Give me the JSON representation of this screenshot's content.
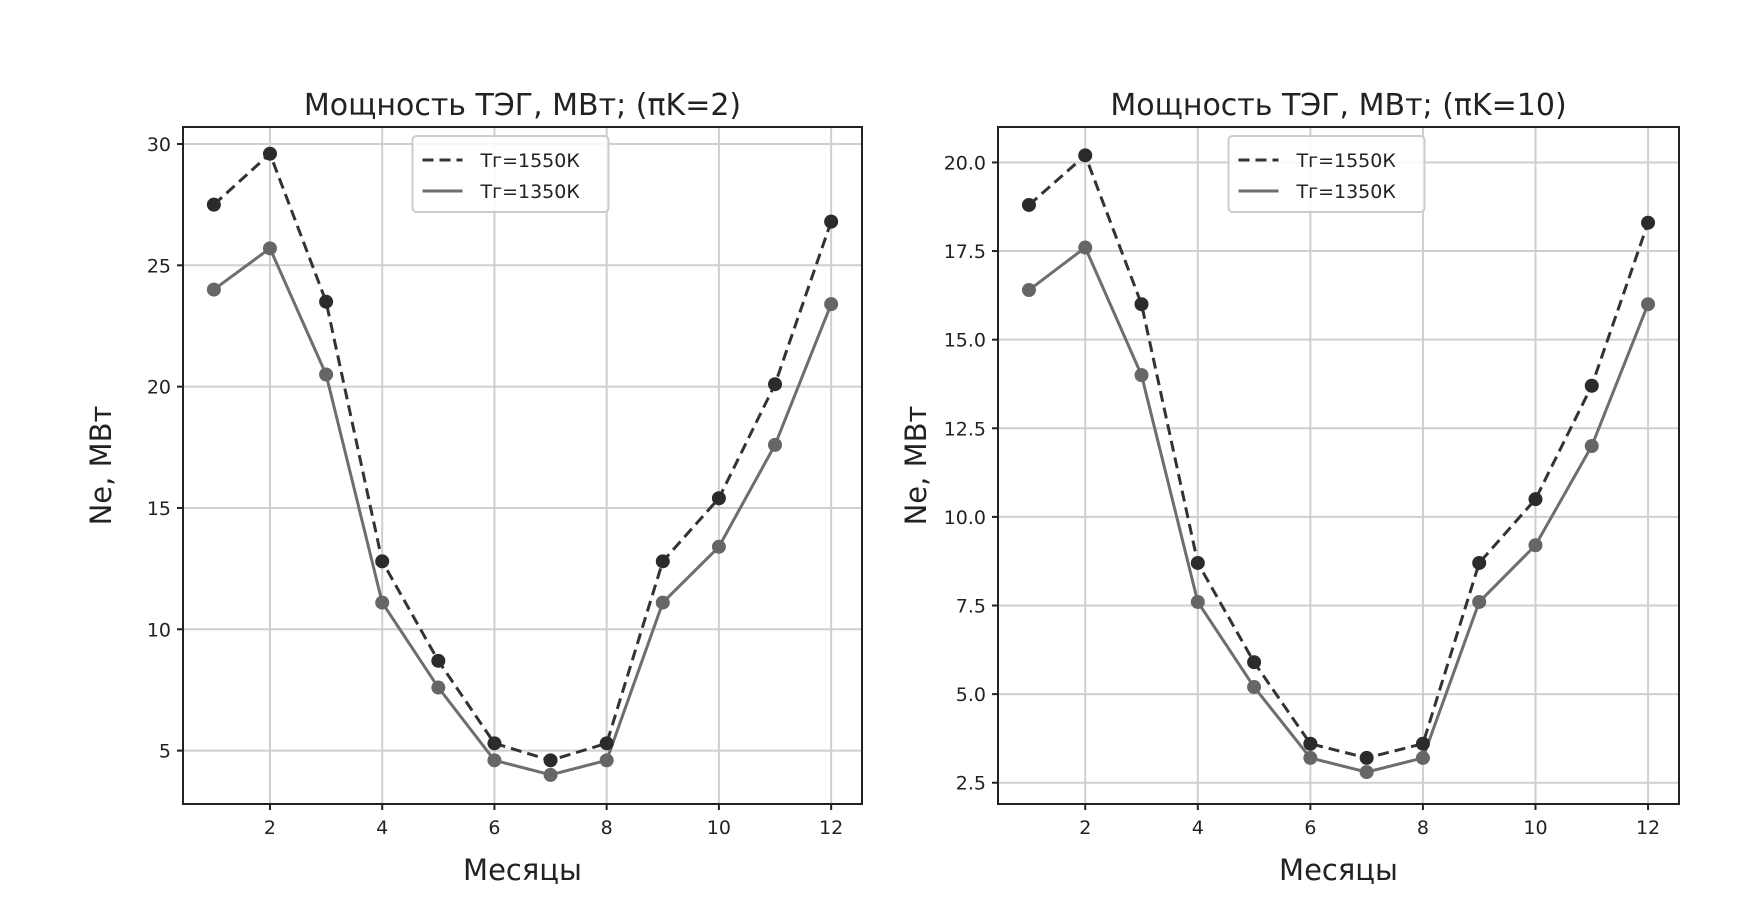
{
  "chart_data": [
    {
      "type": "line",
      "title": "Мощность ТЭГ, МВт; (πK=2)",
      "xlabel": "Месяцы",
      "ylabel": "Ne, МВт",
      "x": [
        1,
        2,
        3,
        4,
        5,
        6,
        7,
        8,
        9,
        10,
        11,
        12
      ],
      "xlim": [
        0.45,
        12.55
      ],
      "ylim": [
        2.8,
        30.7
      ],
      "xticks": [
        2,
        4,
        6,
        8,
        10,
        12
      ],
      "yticks": [
        5,
        10,
        15,
        20,
        25,
        30
      ],
      "grid": true,
      "legend": "upper center",
      "series": [
        {
          "name": "Тг=1550К",
          "style": "dashed",
          "color": "#333333",
          "values": [
            27.5,
            29.6,
            23.5,
            12.8,
            8.7,
            5.3,
            4.6,
            5.3,
            12.8,
            15.4,
            20.1,
            26.8
          ]
        },
        {
          "name": "Тг=1350К",
          "style": "solid",
          "color": "#6e6e6e",
          "values": [
            24.0,
            25.7,
            20.5,
            11.1,
            7.6,
            4.6,
            4.0,
            4.6,
            11.1,
            13.4,
            17.6,
            23.4
          ]
        }
      ]
    },
    {
      "type": "line",
      "title": "Мощность ТЭГ, МВт; (πK=10)",
      "xlabel": "Месяцы",
      "ylabel": "Ne, МВт",
      "x": [
        1,
        2,
        3,
        4,
        5,
        6,
        7,
        8,
        9,
        10,
        11,
        12
      ],
      "xlim": [
        0.45,
        12.55
      ],
      "ylim": [
        1.9,
        21.0
      ],
      "xticks": [
        2,
        4,
        6,
        8,
        10,
        12
      ],
      "yticks": [
        2.5,
        5.0,
        7.5,
        10.0,
        12.5,
        15.0,
        17.5,
        20.0
      ],
      "ytick_labels": [
        "2.5",
        "5.0",
        "7.5",
        "10.0",
        "12.5",
        "15.0",
        "17.5",
        "20.0"
      ],
      "grid": true,
      "legend": "upper center",
      "series": [
        {
          "name": "Тг=1550К",
          "style": "dashed",
          "color": "#333333",
          "values": [
            18.8,
            20.2,
            16.0,
            8.7,
            5.9,
            3.6,
            3.2,
            3.6,
            8.7,
            10.5,
            13.7,
            18.3
          ]
        },
        {
          "name": "Тг=1350К",
          "style": "solid",
          "color": "#6e6e6e",
          "values": [
            16.4,
            17.6,
            14.0,
            7.6,
            5.2,
            3.2,
            2.8,
            3.2,
            7.6,
            9.2,
            12.0,
            16.0
          ]
        }
      ]
    }
  ]
}
